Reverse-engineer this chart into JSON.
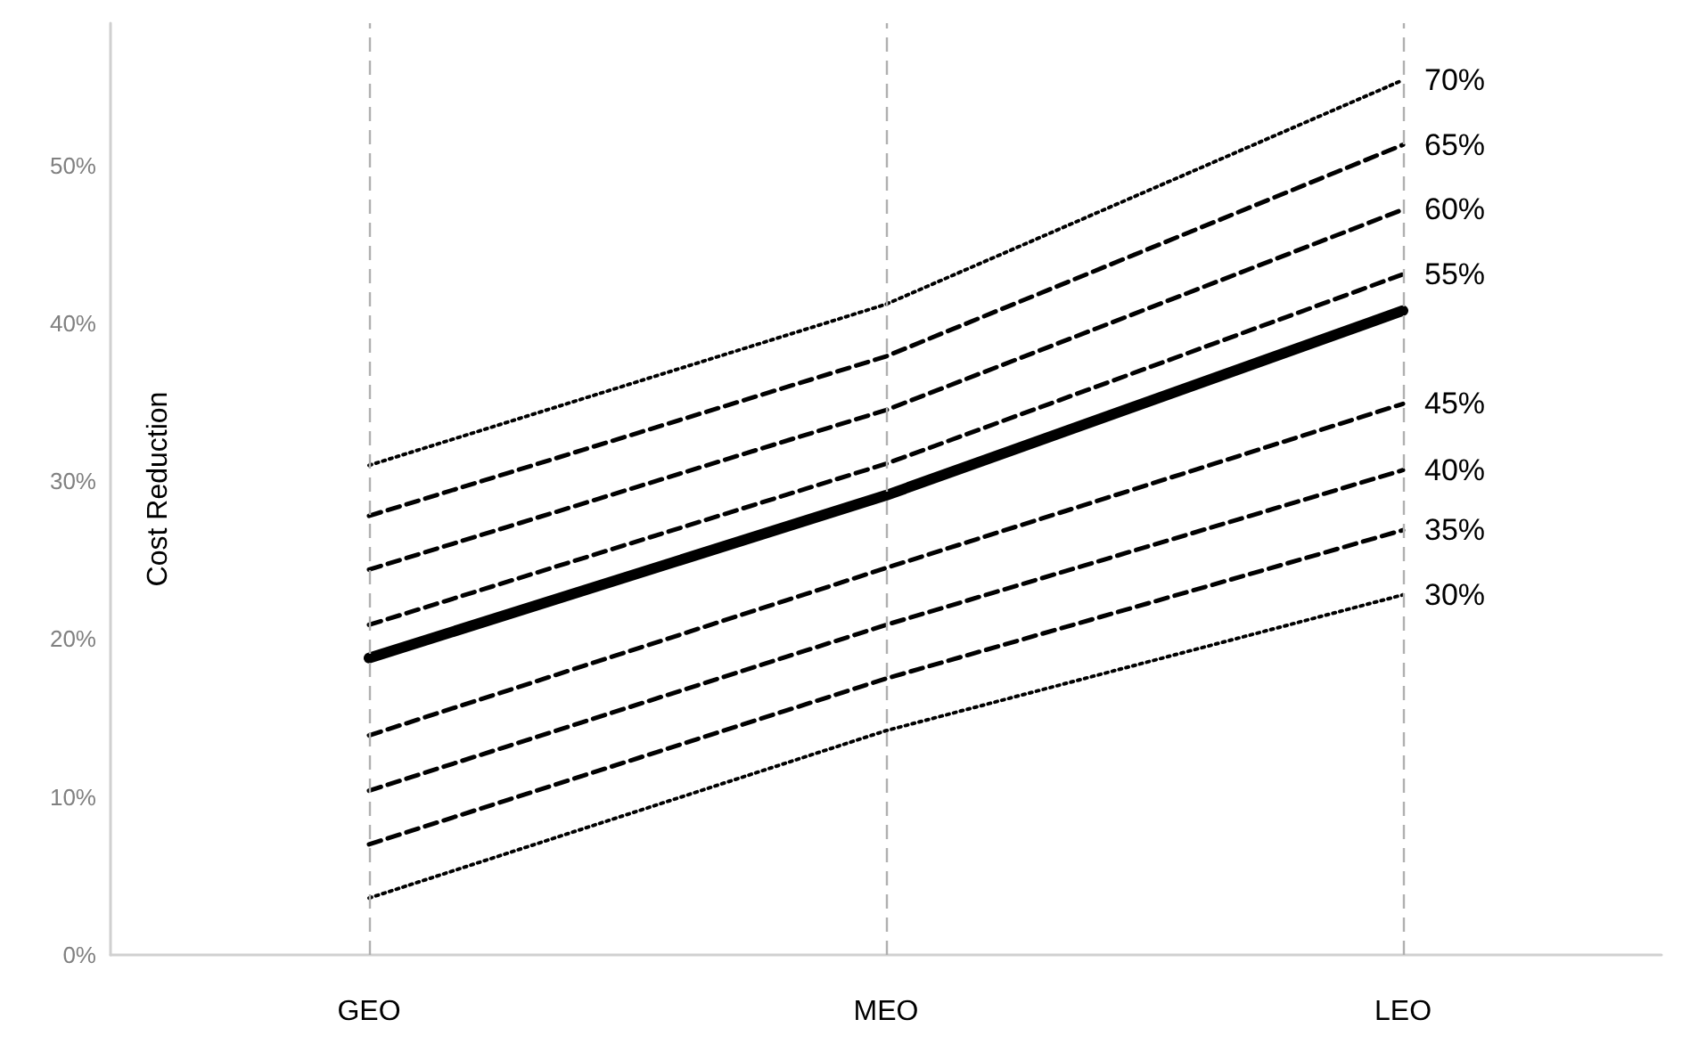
{
  "chart_data": {
    "type": "line",
    "ylabel": "Cost Reduction",
    "categories": [
      "GEO",
      "MEO",
      "LEO"
    ],
    "series": [
      {
        "name": "70%",
        "color": "#000000",
        "line_style": "dotted",
        "values": [
          31.0,
          41.2,
          55.4
        ]
      },
      {
        "name": "65%",
        "color": "#000000",
        "line_style": "dashed",
        "values": [
          27.8,
          37.9,
          51.3
        ]
      },
      {
        "name": "60%",
        "color": "#000000",
        "line_style": "dashed",
        "values": [
          24.4,
          34.5,
          47.2
        ]
      },
      {
        "name": "55%",
        "color": "#000000",
        "line_style": "dashed",
        "values": [
          20.9,
          31.1,
          43.1
        ]
      },
      {
        "color": "#000000",
        "line_style": "solid",
        "values": [
          18.8,
          29.1,
          40.8
        ]
      },
      {
        "name": "45%",
        "color": "#000000",
        "line_style": "dashed",
        "values": [
          13.9,
          24.5,
          34.9
        ]
      },
      {
        "name": "40%",
        "color": "#000000",
        "line_style": "dashed",
        "values": [
          10.4,
          20.9,
          30.7
        ]
      },
      {
        "name": "35%",
        "color": "#000000",
        "line_style": "dashed",
        "values": [
          7.0,
          17.5,
          26.9
        ]
      },
      {
        "name": "30%",
        "color": "#000000",
        "line_style": "dotted",
        "values": [
          3.6,
          14.2,
          22.8
        ]
      }
    ],
    "ylim": [
      0,
      59
    ],
    "yticks": [
      {
        "value": 0,
        "label": "0%"
      },
      {
        "value": 10,
        "label": "10%"
      },
      {
        "value": 20,
        "label": "20%"
      },
      {
        "value": 30,
        "label": "30%"
      },
      {
        "value": 40,
        "label": "40%"
      },
      {
        "value": 50,
        "label": "50%"
      }
    ],
    "grid": "x",
    "legend": false,
    "marker": "none"
  }
}
